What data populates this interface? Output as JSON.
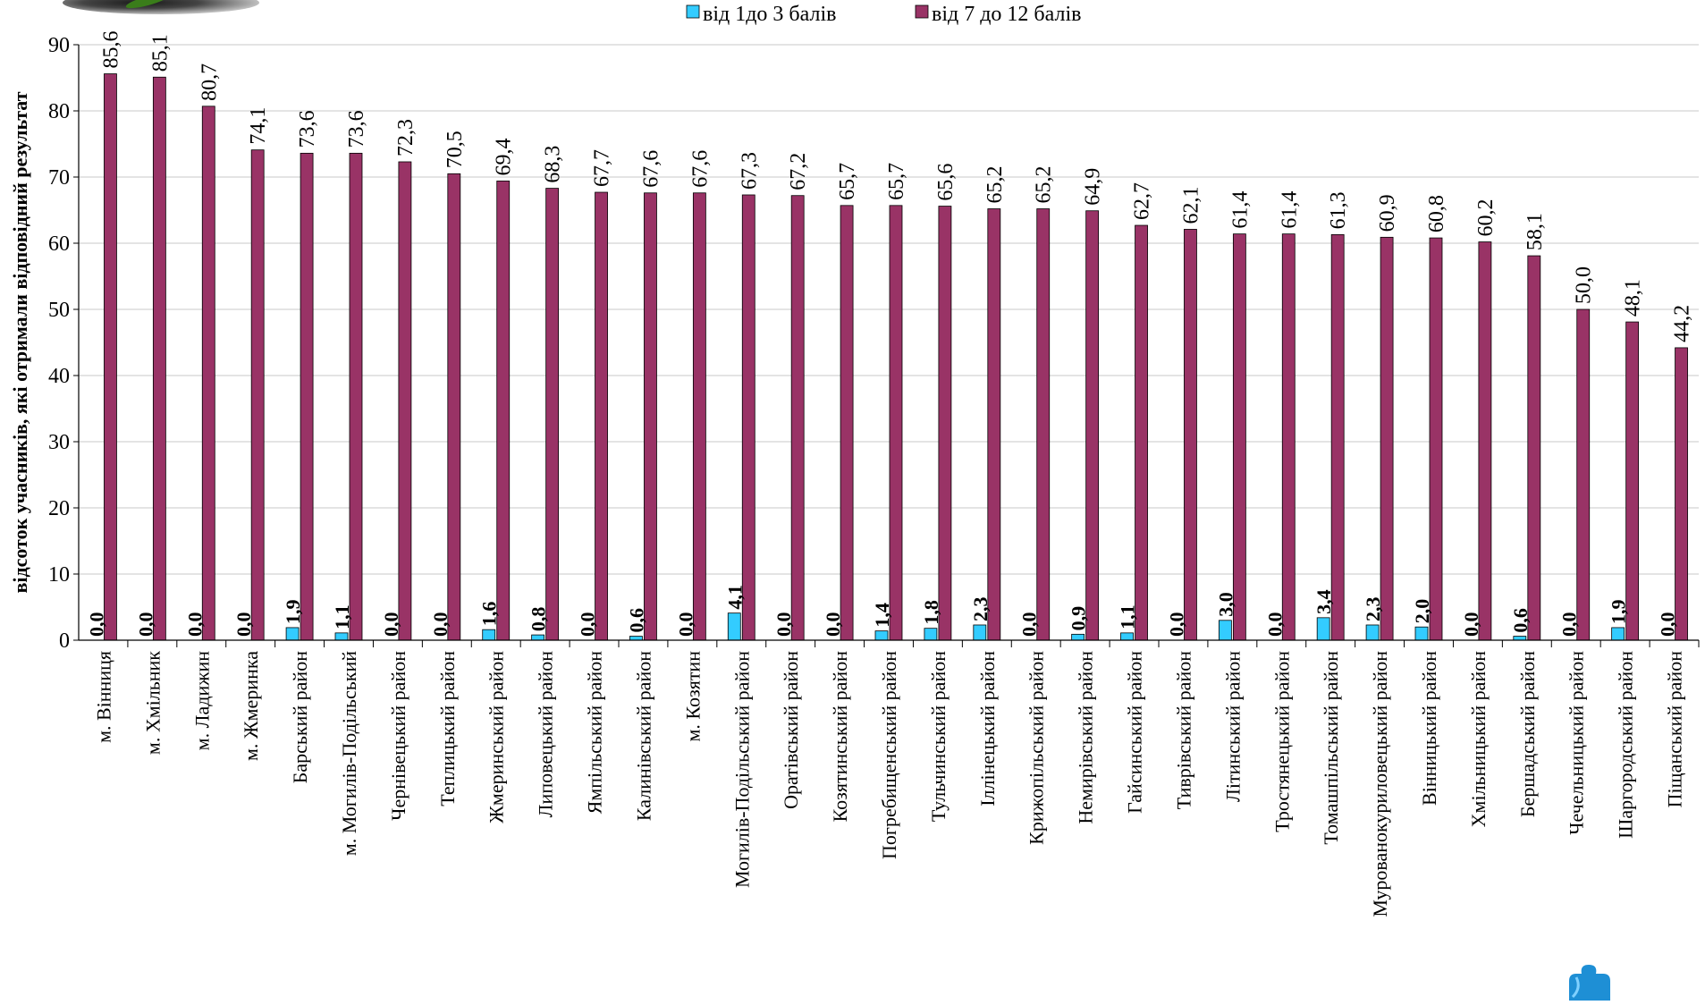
{
  "chart_data": {
    "type": "bar",
    "ylabel": "відсоток учасників, які отримали відповідний результат",
    "ylim": [
      0,
      90
    ],
    "yticks": [
      0,
      10,
      20,
      30,
      40,
      50,
      60,
      70,
      80,
      90
    ],
    "grid": true,
    "legend_position": "top-center",
    "categories": [
      "м. Вінниця",
      "м. Хмільник",
      "м. Ладижин",
      "м. Жмеринка",
      "Барський район",
      "м. Могилів-Подільський",
      "Чернівецький район",
      "Теплицький район",
      "Жмеринський район",
      "Липовецький район",
      "Ямпільський район",
      "Калинівський район",
      "м. Козятин",
      "Могилів-Подільський район",
      "Оратівський район",
      "Козятинський район",
      "Погребищенський район",
      "Тульчинський район",
      "Іллінецький район",
      "Крижопільський район",
      "Немирівський район",
      "Гайсинський район",
      "Тиврівський район",
      "Літинський район",
      "Тростянецький район",
      "Томашпільський район",
      "Мурованокуриловецький район",
      "Вінницький район",
      "Хмільницький район",
      "Бершадський район",
      "Чечельницький район",
      "Шаргородський район",
      "Піщанський район"
    ],
    "series": [
      {
        "name": "від 1до 3 балів",
        "color": "#33CCFF",
        "values": [
          0.0,
          0.0,
          0.0,
          0.0,
          1.9,
          1.1,
          0.0,
          0.0,
          1.6,
          0.8,
          0.0,
          0.6,
          0.0,
          4.1,
          0.0,
          0.0,
          1.4,
          1.8,
          2.3,
          0.0,
          0.9,
          1.1,
          0.0,
          3.0,
          0.0,
          3.4,
          2.3,
          2.0,
          0.0,
          0.6,
          0.0,
          1.9,
          0.0
        ],
        "labels": [
          "0,0",
          "0,0",
          "0,0",
          "0,0",
          "1,9",
          "1,1",
          "0,0",
          "0,0",
          "1,6",
          "0,8",
          "0,0",
          "0,6",
          "0,0",
          "4,1",
          "0,0",
          "0,0",
          "1,4",
          "1,8",
          "2,3",
          "0,0",
          "0,9",
          "1,1",
          "0,0",
          "3,0",
          "0,0",
          "3,4",
          "2,3",
          "2,0",
          "0,0",
          "0,6",
          "0,0",
          "1,9",
          "0,0"
        ]
      },
      {
        "name": "від 7 до 12 балів",
        "color": "#993366",
        "values": [
          85.6,
          85.1,
          80.7,
          74.1,
          73.6,
          73.6,
          72.3,
          70.5,
          69.4,
          68.3,
          67.7,
          67.6,
          67.6,
          67.3,
          67.2,
          65.7,
          65.7,
          65.6,
          65.2,
          65.2,
          64.9,
          62.7,
          62.1,
          61.4,
          61.4,
          61.3,
          60.9,
          60.8,
          60.2,
          58.1,
          50.0,
          48.1,
          44.2
        ],
        "labels": [
          "85,6",
          "85,1",
          "80,7",
          "74,1",
          "73,6",
          "73,6",
          "72,3",
          "70,5",
          "69,4",
          "68,3",
          "67,7",
          "67,6",
          "67,6",
          "67,3",
          "67,2",
          "65,7",
          "65,7",
          "65,6",
          "65,2",
          "65,2",
          "64,9",
          "62,7",
          "62,1",
          "61,4",
          "61,4",
          "61,3",
          "60,9",
          "60,8",
          "60,2",
          "58,1",
          "50,0",
          "48,1",
          "44,2"
        ]
      }
    ]
  },
  "decor": {
    "legend_marker_color_1": "#33CCFF",
    "legend_marker_color_2": "#993366",
    "grid_color": "#C8C8C8",
    "puzzle_color": "#1E8FD5"
  }
}
